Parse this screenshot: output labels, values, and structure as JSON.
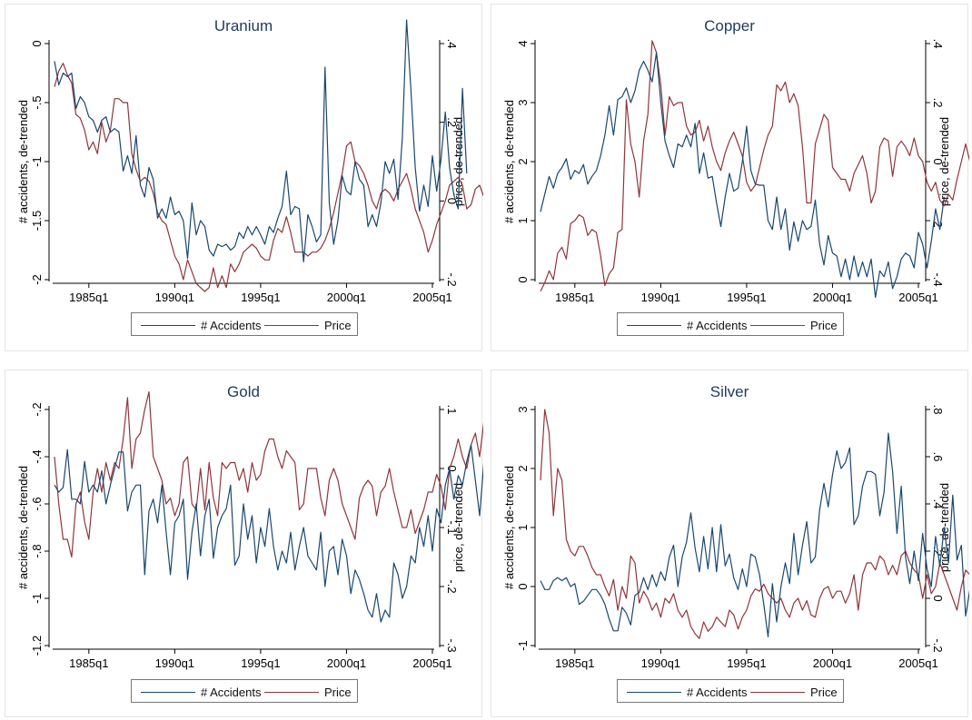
{
  "colors": {
    "accidents": "#1a476f",
    "price": "#90353b",
    "axis": "#000000",
    "frame": "#e4e4e4"
  },
  "common": {
    "x_ticks": [
      1985,
      1990,
      1995,
      2000,
      2005
    ],
    "x_tick_labels": [
      "1985q1",
      "1990q1",
      "1995q1",
      "2000q1",
      "2005q1"
    ],
    "ylabel_left": "# accidents, de-trended",
    "ylabel_right": "price, de-trended",
    "legend": [
      "# Accidents",
      "Price"
    ],
    "xlim": [
      1983.0,
      2005.0
    ]
  },
  "chart_data": [
    {
      "type": "line",
      "title": "Uranium",
      "ylim_left": [
        -2.0,
        0.0
      ],
      "yticks_left": [
        -2,
        -1.5,
        -1,
        -0.5,
        0
      ],
      "ytick_labels_left": [
        "-2",
        "-1.5",
        "-1",
        "-.5",
        "0"
      ],
      "ylim_right": [
        -0.2,
        0.4
      ],
      "yticks_right": [
        -0.2,
        0,
        0.2,
        0.4
      ],
      "ytick_labels_right": [
        "-.2",
        "0",
        ".2",
        ".4"
      ],
      "series": [
        {
          "name": "# Accidents",
          "axis": "left",
          "x0": 1983.0,
          "step": 0.25,
          "values": [
            -0.15,
            -0.35,
            -0.25,
            -0.28,
            -0.25,
            -0.55,
            -0.45,
            -0.5,
            -0.62,
            -0.65,
            -0.75,
            -0.65,
            -0.62,
            -0.75,
            -0.72,
            -0.75,
            -1.08,
            -0.95,
            -1.1,
            -0.78,
            -1.2,
            -1.3,
            -1.05,
            -1.15,
            -1.48,
            -1.4,
            -1.48,
            -1.3,
            -1.45,
            -1.42,
            -1.5,
            -1.82,
            -1.35,
            -1.62,
            -1.5,
            -1.55,
            -1.75,
            -1.8,
            -1.7,
            -1.72,
            -1.7,
            -1.75,
            -1.72,
            -1.6,
            -1.65,
            -1.55,
            -1.62,
            -1.55,
            -1.62,
            -1.7,
            -1.55,
            -1.6,
            -1.48,
            -1.38,
            -1.08,
            -1.45,
            -1.38,
            -1.4,
            -1.85,
            -1.45,
            -1.55,
            -1.68,
            -1.62,
            -0.2,
            -1.35,
            -1.7,
            -1.5,
            -1.12,
            -1.25,
            -1.28,
            -1.0,
            -1.15,
            -1.2,
            -1.55,
            -1.45,
            -1.55,
            -1.35,
            -1.0,
            -1.1,
            -0.98,
            -1.32,
            -0.8,
            0.2,
            -0.4,
            -1.05,
            -1.42,
            -1.2,
            -1.38,
            -0.95,
            -1.25,
            -0.98,
            -0.58,
            -1.05,
            -1.28,
            -1.4,
            -0.38,
            -1.1
          ]
        },
        {
          "name": "Price",
          "axis": "right",
          "x0": 1983.0,
          "step": 0.25,
          "values": [
            0.29,
            0.33,
            0.35,
            0.32,
            0.3,
            0.22,
            0.21,
            0.18,
            0.13,
            0.15,
            0.12,
            0.2,
            0.15,
            0.18,
            0.26,
            0.26,
            0.25,
            0.25,
            0.12,
            0.08,
            0.05,
            0.06,
            0.05,
            0.02,
            -0.03,
            -0.05,
            -0.06,
            -0.1,
            -0.14,
            -0.16,
            -0.2,
            -0.15,
            -0.18,
            -0.21,
            -0.22,
            -0.23,
            -0.22,
            -0.17,
            -0.22,
            -0.19,
            -0.22,
            -0.16,
            -0.18,
            -0.16,
            -0.13,
            -0.12,
            -0.11,
            -0.12,
            -0.14,
            -0.15,
            -0.15,
            -0.1,
            -0.07,
            -0.08,
            -0.04,
            -0.08,
            -0.13,
            -0.13,
            -0.13,
            -0.14,
            -0.13,
            -0.13,
            -0.12,
            -0.1,
            -0.07,
            -0.03,
            0.02,
            0.07,
            0.14,
            0.15,
            0.1,
            0.09,
            0.07,
            0.04,
            0.0,
            -0.02,
            0.02,
            0.03,
            0.02,
            0.0,
            0.03,
            0.05,
            0.07,
            0.03,
            -0.02,
            -0.05,
            -0.08,
            -0.13,
            -0.1,
            -0.06,
            -0.03,
            0.0,
            0.04,
            0.05,
            0.06,
            0.04,
            -0.02,
            -0.01,
            0.03,
            0.04,
            0.01,
            -0.01,
            0.03,
            0.03,
            0.02,
            0.01,
            0.02,
            -0.01,
            -0.02,
            0.03,
            -0.03,
            0.05,
            0.1,
            0.2,
            0.09,
            -0.02
          ]
        }
      ]
    },
    {
      "type": "line",
      "title": "Copper",
      "ylim_left": [
        0,
        4
      ],
      "yticks_left": [
        0,
        1,
        2,
        3,
        4
      ],
      "ytick_labels_left": [
        "0",
        "1",
        "2",
        "3",
        "4"
      ],
      "ylim_right": [
        -0.4,
        0.4
      ],
      "yticks_right": [
        -0.4,
        -0.2,
        0,
        0.2,
        0.4
      ],
      "ytick_labels_right": [
        "-.4",
        "-.2",
        "0",
        ".2",
        ".4"
      ],
      "series": [
        {
          "name": "# Accidents",
          "axis": "left",
          "x0": 1983.0,
          "step": 0.25,
          "values": [
            1.15,
            1.45,
            1.75,
            1.55,
            1.8,
            1.9,
            2.05,
            1.7,
            1.85,
            1.8,
            1.95,
            1.62,
            1.75,
            1.85,
            2.1,
            2.45,
            2.95,
            2.45,
            3.05,
            3.1,
            3.25,
            3.0,
            3.2,
            3.55,
            3.7,
            3.55,
            3.35,
            3.85,
            3.0,
            2.35,
            2.1,
            1.9,
            2.3,
            2.25,
            2.45,
            2.25,
            2.65,
            1.8,
            2.15,
            1.72,
            1.75,
            1.3,
            0.9,
            1.4,
            1.8,
            1.5,
            1.55,
            2.0,
            2.6,
            1.85,
            1.62,
            1.6,
            1.6,
            1.0,
            0.85,
            1.4,
            0.85,
            1.2,
            0.5,
            0.98,
            0.65,
            1.0,
            0.85,
            0.9,
            1.35,
            0.6,
            0.25,
            0.75,
            0.45,
            0.4,
            0.05,
            0.35,
            0.0,
            0.4,
            0.05,
            0.3,
            0.05,
            0.35,
            -0.3,
            0.15,
            0.05,
            0.3,
            -0.15,
            0.05,
            0.35,
            0.45,
            0.4,
            0.2,
            0.8,
            0.6,
            0.2,
            0.65,
            1.2,
            0.85,
            1.4
          ]
        },
        {
          "name": "Price",
          "axis": "right",
          "x0": 1983.0,
          "step": 0.25,
          "values": [
            -0.44,
            -0.41,
            -0.37,
            -0.4,
            -0.31,
            -0.29,
            -0.33,
            -0.21,
            -0.2,
            -0.18,
            -0.19,
            -0.25,
            -0.23,
            -0.24,
            -0.32,
            -0.42,
            -0.38,
            -0.36,
            -0.24,
            -0.23,
            0.21,
            0.06,
            0.0,
            -0.12,
            0.07,
            0.16,
            0.41,
            0.37,
            0.26,
            0.09,
            0.22,
            0.19,
            0.2,
            0.2,
            0.12,
            0.09,
            0.1,
            0.14,
            0.07,
            0.12,
            0.05,
            0.0,
            -0.03,
            0.03,
            0.07,
            0.1,
            0.06,
            0.02,
            -0.07,
            -0.1,
            -0.08,
            -0.02,
            0.04,
            0.09,
            0.12,
            0.26,
            0.24,
            0.27,
            0.2,
            0.23,
            0.19,
            0.05,
            -0.14,
            -0.14,
            0.06,
            0.11,
            0.16,
            0.14,
            -0.02,
            -0.04,
            -0.06,
            -0.06,
            -0.1,
            -0.04,
            -0.01,
            0.02,
            -0.04,
            -0.14,
            -0.1,
            0.05,
            0.08,
            0.07,
            -0.05,
            0.05,
            0.07,
            0.05,
            0.02,
            0.08,
            0.02,
            0.0,
            -0.07,
            -0.1,
            -0.07,
            -0.13,
            -0.15,
            -0.11,
            -0.13,
            -0.06,
            0.0,
            0.06,
            0.0,
            -0.07,
            -0.01,
            0.02,
            -0.08,
            -0.04,
            0.02,
            -0.05,
            -0.1,
            -0.09,
            -0.12,
            -0.1,
            -0.08,
            0.2,
            0.05,
            0.21,
            0.06
          ]
        }
      ]
    },
    {
      "type": "line",
      "title": "Gold",
      "ylim_left": [
        -1.2,
        -0.2
      ],
      "yticks_left": [
        -1.2,
        -1.0,
        -0.8,
        -0.6,
        -0.4,
        -0.2
      ],
      "ytick_labels_left": [
        "-1.2",
        "-1",
        "-.8",
        "-.6",
        "-.4",
        "-.2"
      ],
      "ylim_right": [
        -0.3,
        0.1
      ],
      "yticks_right": [
        -0.3,
        -0.2,
        -0.1,
        0,
        0.1
      ],
      "ytick_labels_right": [
        "-.3",
        "-.2",
        "-.1",
        "0",
        ".1"
      ],
      "series": [
        {
          "name": "# Accidents",
          "axis": "left",
          "x0": 1983.0,
          "step": 0.25,
          "values": [
            -0.52,
            -0.55,
            -0.53,
            -0.37,
            -0.58,
            -0.58,
            -0.6,
            -0.42,
            -0.55,
            -0.52,
            -0.55,
            -0.46,
            -0.6,
            -0.52,
            -0.45,
            -0.38,
            -0.38,
            -0.63,
            -0.55,
            -0.52,
            -0.52,
            -0.9,
            -0.63,
            -0.58,
            -0.68,
            -0.52,
            -0.72,
            -0.9,
            -0.68,
            -0.65,
            -0.58,
            -0.92,
            -0.72,
            -0.6,
            -0.82,
            -0.65,
            -0.58,
            -0.83,
            -0.7,
            -0.65,
            -0.62,
            -0.52,
            -0.86,
            -0.82,
            -0.6,
            -0.75,
            -0.65,
            -0.85,
            -0.7,
            -0.78,
            -0.62,
            -0.78,
            -0.88,
            -0.8,
            -0.85,
            -0.72,
            -0.88,
            -0.78,
            -0.7,
            -0.82,
            -0.85,
            -0.88,
            -0.72,
            -0.95,
            -0.8,
            -0.78,
            -0.9,
            -0.75,
            -0.82,
            -0.98,
            -0.88,
            -0.92,
            -0.98,
            -1.05,
            -1.08,
            -0.98,
            -1.1,
            -1.05,
            -1.08,
            -0.85,
            -0.9,
            -1.0,
            -0.95,
            -0.82,
            -0.85,
            -0.7,
            -0.78,
            -0.65,
            -0.8,
            -0.62,
            -0.68,
            -0.52,
            -0.45,
            -0.58,
            -0.48,
            -0.52,
            -0.42,
            -0.35,
            -0.5,
            -0.65,
            -0.42,
            -0.3,
            -0.2,
            -0.55,
            -0.58,
            -0.52
          ]
        },
        {
          "name": "Price",
          "axis": "right",
          "x0": 1983.0,
          "step": 0.25,
          "values": [
            0.02,
            -0.06,
            -0.12,
            -0.12,
            -0.15,
            -0.06,
            -0.04,
            -0.09,
            -0.12,
            -0.04,
            0.0,
            -0.04,
            0.01,
            -0.02,
            0.01,
            0.0,
            0.05,
            0.12,
            0.0,
            0.05,
            0.06,
            0.1,
            0.13,
            0.02,
            0.0,
            -0.02,
            -0.06,
            -0.05,
            -0.08,
            -0.06,
            0.01,
            0.02,
            -0.06,
            -0.07,
            0.0,
            -0.07,
            0.01,
            -0.05,
            -0.08,
            0.01,
            0.0,
            0.01,
            0.01,
            -0.02,
            0.0,
            -0.04,
            0.01,
            -0.02,
            -0.01,
            0.03,
            0.05,
            0.05,
            0.02,
            0.0,
            0.03,
            0.02,
            0.01,
            -0.07,
            -0.06,
            0.0,
            0.0,
            0.0,
            -0.05,
            -0.08,
            -0.02,
            0.0,
            -0.02,
            -0.06,
            -0.08,
            -0.1,
            -0.12,
            -0.05,
            -0.03,
            -0.02,
            -0.03,
            -0.08,
            -0.04,
            -0.03,
            0.0,
            -0.04,
            -0.07,
            -0.1,
            -0.1,
            -0.07,
            -0.11,
            -0.09,
            -0.07,
            -0.04,
            -0.04,
            -0.01,
            -0.03,
            -0.07,
            0.0,
            0.02,
            0.05,
            0.02,
            0.0,
            0.04,
            0.06,
            0.02,
            0.08,
            0.1,
            -0.05,
            -0.13,
            -0.09,
            -0.25
          ]
        }
      ]
    },
    {
      "type": "line",
      "title": "Silver",
      "ylim_left": [
        -1,
        3
      ],
      "yticks_left": [
        -1,
        0,
        1,
        2,
        3
      ],
      "ytick_labels_left": [
        "-1",
        "0",
        "1",
        "2",
        "3"
      ],
      "ylim_right": [
        -0.2,
        0.8
      ],
      "yticks_right": [
        -0.2,
        0,
        0.2,
        0.4,
        0.6,
        0.8
      ],
      "ytick_labels_right": [
        "-.2",
        "0",
        ".2",
        ".4",
        ".6",
        ".8"
      ],
      "series": [
        {
          "name": "# Accidents",
          "axis": "left",
          "x0": 1983.0,
          "step": 0.25,
          "values": [
            0.1,
            -0.05,
            -0.05,
            0.1,
            0.15,
            0.1,
            0.15,
            0.0,
            0.05,
            -0.3,
            -0.25,
            -0.15,
            -0.05,
            -0.05,
            -0.15,
            -0.3,
            -0.55,
            -0.75,
            -0.75,
            -0.35,
            -0.45,
            -0.65,
            -0.15,
            -0.1,
            0.15,
            -0.05,
            0.2,
            0.0,
            0.25,
            0.1,
            0.5,
            0.7,
            0.0,
            0.5,
            0.75,
            1.25,
            0.65,
            0.25,
            0.85,
            0.3,
            1.0,
            0.25,
            1.05,
            0.35,
            0.55,
            0.15,
            -0.05,
            0.3,
            0.0,
            0.55,
            0.5,
            0.2,
            -0.3,
            -0.85,
            0.05,
            -0.6,
            0.0,
            0.4,
            0.05,
            0.9,
            0.2,
            0.7,
            1.1,
            0.4,
            0.5,
            1.3,
            1.75,
            1.35,
            1.9,
            2.3,
            2.0,
            2.1,
            2.35,
            1.05,
            1.2,
            1.7,
            1.95,
            1.95,
            1.9,
            1.2,
            1.6,
            2.6,
            1.95,
            0.9,
            1.7,
            0.5,
            0.05,
            0.6,
            0.1,
            0.9,
            0.3,
            0.0,
            0.85,
            0.35,
            1.0,
            0.4,
            1.55,
            0.45,
            0.7,
            -0.5,
            -0.05,
            0.25,
            0.9,
            1.0,
            0.05,
            1.65,
            1.05
          ]
        },
        {
          "name": "Price",
          "axis": "right",
          "x0": 1983.0,
          "step": 0.25,
          "values": [
            0.5,
            0.8,
            0.7,
            0.35,
            0.55,
            0.5,
            0.25,
            0.2,
            0.18,
            0.22,
            0.22,
            0.18,
            0.13,
            0.1,
            0.1,
            0.05,
            0.01,
            0.08,
            -0.05,
            0.05,
            0.0,
            0.18,
            0.15,
            -0.02,
            0.03,
            0.0,
            -0.05,
            -0.02,
            -0.08,
            0.0,
            -0.02,
            0.02,
            -0.05,
            -0.08,
            -0.05,
            -0.12,
            -0.15,
            -0.17,
            -0.1,
            -0.14,
            -0.12,
            -0.08,
            -0.1,
            -0.12,
            -0.05,
            -0.07,
            -0.13,
            -0.08,
            -0.05,
            0.01,
            0.04,
            0.03,
            0.06,
            0.02,
            0.0,
            -0.02,
            0.0,
            -0.05,
            -0.08,
            -0.02,
            0.0,
            -0.05,
            -0.01,
            -0.07,
            -0.08,
            0.0,
            0.04,
            0.05,
            0.0,
            0.03,
            0.03,
            -0.02,
            0.02,
            0.1,
            -0.05,
            0.1,
            0.15,
            0.15,
            0.12,
            0.18,
            0.16,
            0.1,
            0.14,
            0.1,
            0.18,
            0.2,
            0.15,
            0.12,
            0.1,
            0.0,
            0.1,
            0.02,
            0.05,
            0.15,
            0.1,
            0.05,
            0.0,
            -0.05,
            0.05,
            0.12,
            0.1,
            0.0,
            -0.08,
            0.05,
            0.1,
            -0.15
          ]
        }
      ]
    }
  ]
}
